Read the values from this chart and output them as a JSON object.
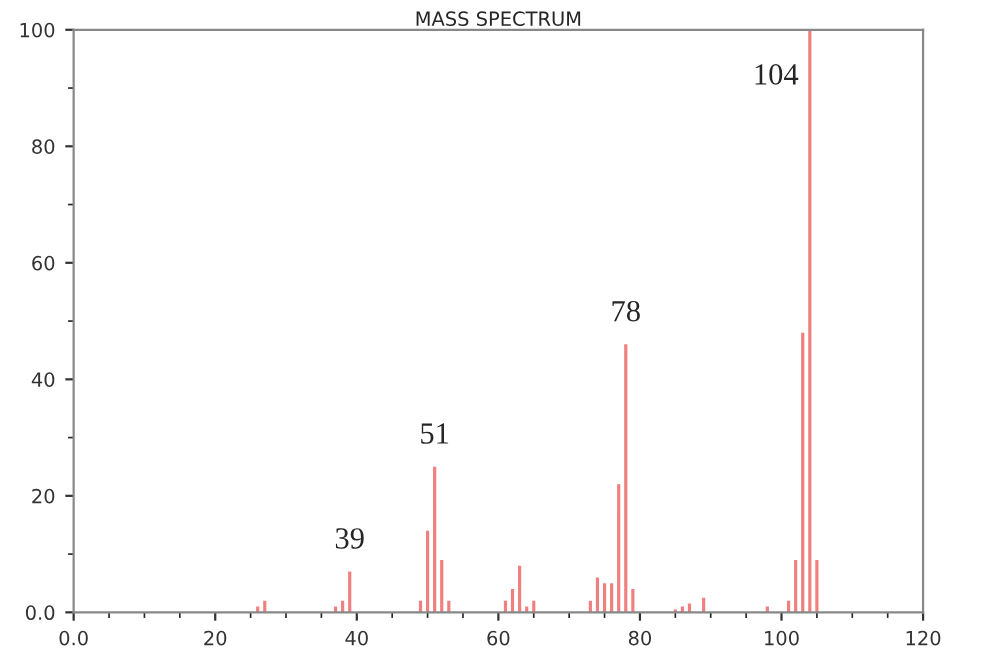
{
  "chart_data": {
    "type": "bar",
    "title": "MASS SPECTRUM",
    "x": [
      26,
      27,
      37,
      38,
      39,
      49,
      50,
      51,
      52,
      53,
      61,
      62,
      63,
      64,
      65,
      73,
      74,
      75,
      76,
      77,
      78,
      79,
      85,
      86,
      87,
      89,
      98,
      101,
      102,
      103,
      104,
      105
    ],
    "series": [
      {
        "color": "#f08080",
        "values": [
          1,
          2,
          1,
          2,
          7,
          2,
          14,
          25,
          9,
          2,
          2,
          4,
          8,
          1,
          2,
          2,
          6,
          5,
          5,
          22,
          46,
          4,
          0.5,
          1,
          1.5,
          2.5,
          1,
          2,
          9,
          48,
          100,
          9
        ]
      }
    ],
    "xlim": [
      0,
      120
    ],
    "ylim": [
      0,
      100
    ],
    "xticks": [
      {
        "value": 0,
        "label": "0.0"
      },
      20,
      40,
      60,
      80,
      100,
      120
    ],
    "yticks": [
      {
        "value": 0,
        "label": "0.0"
      },
      20,
      40,
      60,
      80,
      100
    ],
    "annotations": [
      {
        "text": "39",
        "x": 39,
        "y": 7
      },
      {
        "text": "51",
        "x": 51,
        "y": 25
      },
      {
        "text": "78",
        "x": 78,
        "y": 46
      },
      {
        "text": "104",
        "x": 104,
        "y": 100
      }
    ],
    "grid": false,
    "legend": false
  }
}
